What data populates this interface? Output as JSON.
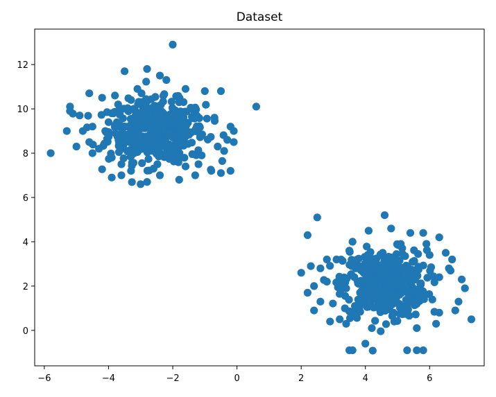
{
  "chart_data": {
    "type": "scatter",
    "title": "Dataset",
    "xlabel": "",
    "ylabel": "",
    "xlim": [
      -6.3,
      7.7
    ],
    "ylim": [
      -1.6,
      13.6
    ],
    "xticks": [
      -6,
      -4,
      -2,
      0,
      2,
      4,
      6
    ],
    "yticks": [
      0,
      2,
      4,
      6,
      8,
      10,
      12
    ],
    "xtick_labels": [
      "−6",
      "−4",
      "−2",
      "0",
      "2",
      "4",
      "6"
    ],
    "ytick_labels": [
      "0",
      "2",
      "4",
      "6",
      "8",
      "10",
      "12"
    ],
    "grid": false,
    "marker_color": "#1f77b4",
    "points": [
      [
        -2.0,
        12.9
      ],
      [
        -3.5,
        11.7
      ],
      [
        -2.8,
        11.8
      ],
      [
        -2.4,
        11.5
      ],
      [
        -2.2,
        11.3
      ],
      [
        -1.0,
        10.8
      ],
      [
        -0.5,
        10.8
      ],
      [
        -4.6,
        10.7
      ],
      [
        -4.2,
        10.5
      ],
      [
        -3.8,
        10.6
      ],
      [
        -3.1,
        10.9
      ],
      [
        -1.6,
        10.9
      ],
      [
        -5.2,
        10.1
      ],
      [
        -5.2,
        9.9
      ],
      [
        -4.9,
        9.7
      ],
      [
        -3.9,
        9.8
      ],
      [
        0.6,
        10.1
      ],
      [
        -5.3,
        9.0
      ],
      [
        -4.5,
        9.2
      ],
      [
        -4.1,
        9.0
      ],
      [
        -0.2,
        9.2
      ],
      [
        -0.1,
        9.0
      ],
      [
        -5.0,
        8.3
      ],
      [
        -4.6,
        8.5
      ],
      [
        -4.3,
        8.2
      ],
      [
        -0.3,
        8.6
      ],
      [
        -0.1,
        8.5
      ],
      [
        -5.8,
        8.0
      ],
      [
        -4.5,
        8.0
      ],
      [
        -3.9,
        7.8
      ],
      [
        -0.6,
        8.3
      ],
      [
        -3.6,
        7.5
      ],
      [
        -2.6,
        7.3
      ],
      [
        -1.2,
        7.5
      ],
      [
        -0.8,
        7.2
      ],
      [
        -3.9,
        6.9
      ],
      [
        -3.6,
        7.0
      ],
      [
        -3.0,
        6.6
      ],
      [
        -2.8,
        6.7
      ],
      [
        -1.8,
        6.8
      ],
      [
        -0.5,
        7.1
      ],
      [
        -0.2,
        7.2
      ],
      [
        -1.3,
        7.0
      ],
      [
        -3.3,
        10.4
      ],
      [
        -1.8,
        10.3
      ],
      [
        -4.0,
        9.4
      ],
      [
        -0.7,
        9.6
      ],
      [
        -3.3,
        7.2
      ],
      [
        -2.4,
        7.0
      ],
      [
        -1.6,
        7.4
      ],
      [
        -0.4,
        8.1
      ],
      [
        -4.8,
        9.0
      ],
      [
        -1.1,
        7.9
      ],
      [
        -3.7,
        10.2
      ],
      [
        4.6,
        5.2
      ],
      [
        2.5,
        5.1
      ],
      [
        2.2,
        4.3
      ],
      [
        4.1,
        4.5
      ],
      [
        4.8,
        4.6
      ],
      [
        5.4,
        4.4
      ],
      [
        5.8,
        4.4
      ],
      [
        6.3,
        4.2
      ],
      [
        3.5,
        3.6
      ],
      [
        5.9,
        3.9
      ],
      [
        6.5,
        3.5
      ],
      [
        2.0,
        2.6
      ],
      [
        2.3,
        2.9
      ],
      [
        2.6,
        2.8
      ],
      [
        6.7,
        3.2
      ],
      [
        2.4,
        2.0
      ],
      [
        2.8,
        2.2
      ],
      [
        7.0,
        2.3
      ],
      [
        2.2,
        1.7
      ],
      [
        2.6,
        1.3
      ],
      [
        7.1,
        1.9
      ],
      [
        2.4,
        0.9
      ],
      [
        2.9,
        0.4
      ],
      [
        6.8,
        0.9
      ],
      [
        7.3,
        0.5
      ],
      [
        3.4,
        0.3
      ],
      [
        4.2,
        0.1
      ],
      [
        5.6,
        0.1
      ],
      [
        6.3,
        0.8
      ],
      [
        4.0,
        -0.6
      ],
      [
        3.5,
        -0.9
      ],
      [
        3.6,
        -0.9
      ],
      [
        5.3,
        -0.9
      ],
      [
        5.6,
        -0.9
      ],
      [
        5.8,
        -0.9
      ],
      [
        3.1,
        3.2
      ],
      [
        6.0,
        3.4
      ],
      [
        6.9,
        1.3
      ],
      [
        3.2,
        0.5
      ],
      [
        6.2,
        0.3
      ],
      [
        3.7,
        2.8
      ],
      [
        5.6,
        1.2
      ],
      [
        2.8,
        3.2
      ],
      [
        3.4,
        1.9
      ],
      [
        6.3,
        2.4
      ],
      [
        4.9,
        0.4
      ],
      [
        3.6,
        4.0
      ],
      [
        5.1,
        3.9
      ],
      [
        6.6,
        2.8
      ]
    ],
    "clusters": [
      {
        "center": [
          -2.5,
          9.0
        ],
        "spread": [
          0.75,
          0.68
        ],
        "count": 470
      },
      {
        "center": [
          4.6,
          2.1
        ],
        "spread": [
          0.65,
          0.75
        ],
        "count": 430
      }
    ]
  }
}
